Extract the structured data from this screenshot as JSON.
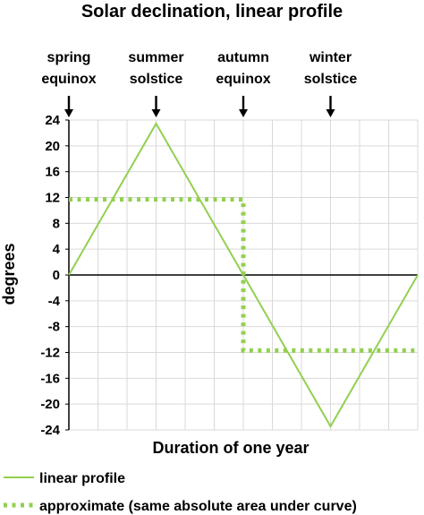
{
  "chart_data": {
    "type": "line",
    "title": "Solar declination, linear profile",
    "xlabel": "Duration of one year",
    "ylabel": "degrees",
    "ylim": [
      -24,
      24
    ],
    "xlim": [
      0,
      1
    ],
    "yticks": [
      "24",
      "20",
      "16",
      "12",
      "8",
      "4",
      "0",
      "-4",
      "-8",
      "-12",
      "-16",
      "-20",
      "-24"
    ],
    "grid": true,
    "legend_position": "bottom",
    "annotations": [
      {
        "lines": [
          "spring",
          "equinox"
        ],
        "x": 0.0
      },
      {
        "lines": [
          "summer",
          "solstice"
        ],
        "x": 0.25
      },
      {
        "lines": [
          "autumn",
          "equinox"
        ],
        "x": 0.5
      },
      {
        "lines": [
          "winter",
          "solstice"
        ],
        "x": 0.75
      }
    ],
    "series": [
      {
        "name": "linear profile",
        "style": "solid",
        "color": "#92d050",
        "x": [
          0,
          0.25,
          0.75,
          1
        ],
        "y": [
          0,
          23.45,
          -23.45,
          0
        ]
      },
      {
        "name": "approximate (same absolute area under curve)",
        "style": "dotted",
        "color": "#92d050",
        "x": [
          0,
          0.5,
          0.5,
          1
        ],
        "y": [
          11.7,
          11.7,
          -11.7,
          -11.7
        ]
      }
    ]
  }
}
